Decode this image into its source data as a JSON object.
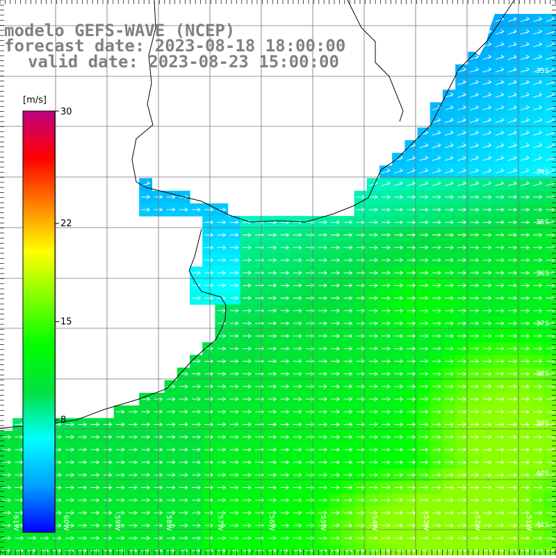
{
  "title": {
    "line1": "modelo GEFS-WAVE (NCEP)",
    "line2": "forecast date: 2023-08-18 18:00:00",
    "line3": "valid date: 2023-08-23 15:00:00"
  },
  "colorbar": {
    "unit": "[m/s]",
    "range": [
      0,
      30
    ],
    "tick_labels": [
      "30",
      "22",
      "15",
      "8"
    ],
    "tick_values": [
      30,
      22,
      15,
      8
    ],
    "colors": [
      "#0000ff",
      "#00a0ff",
      "#00ffff",
      "#00e040",
      "#00ff00",
      "#80ff00",
      "#ffff00",
      "#ff8000",
      "#ff0000",
      "#c00080"
    ]
  },
  "lat_labels": [
    "33S",
    "34S",
    "35S",
    "36S",
    "37S",
    "38S",
    "39S",
    "40S",
    "41S"
  ],
  "lon_labels": [
    "61W",
    "60W",
    "59W",
    "58W",
    "57W",
    "56W",
    "55W",
    "54W",
    "53W",
    "52W",
    "51W"
  ],
  "field": {
    "variable": "wind speed",
    "units": "m/s",
    "arrow_direction": "east"
  }
}
